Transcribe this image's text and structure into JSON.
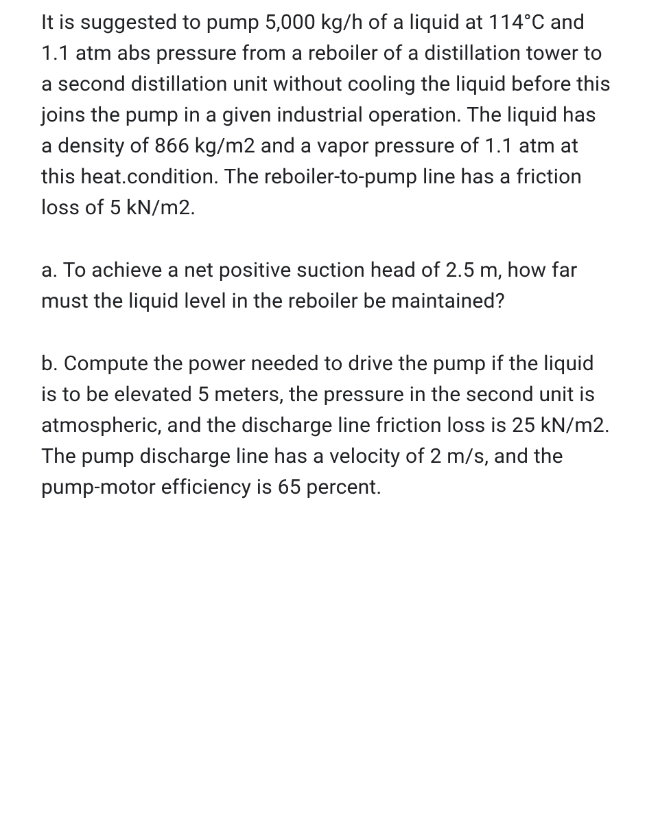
{
  "document": {
    "text_color": "#202124",
    "background_color": "#ffffff",
    "font_size": 30,
    "line_height": 1.5,
    "paragraphs": {
      "p1": "It is suggested to pump 5,000 kg/h of a liquid at 114°C and 1.1 atm abs pressure from a reboiler of a distillation tower to a second distillation unit without cooling the liquid before this joins the pump in a given industrial operation. The liquid has a density of 866 kg/m2 and a vapor pressure of 1.1 atm at this heat.condition. The reboiler-to-pump line has a friction loss of 5 kN/m2.",
      "p2": "a. To achieve a net positive suction head of 2.5 m, how far must the liquid level in the reboiler be maintained?",
      "p3": "b. Compute the power needed to drive the pump if the liquid is to be elevated 5 meters, the pressure in the second unit is atmospheric, and the discharge line friction loss is 25 kN/m2. The pump discharge line has a velocity of 2 m/s, and the pump-motor efficiency is 65 percent."
    }
  }
}
